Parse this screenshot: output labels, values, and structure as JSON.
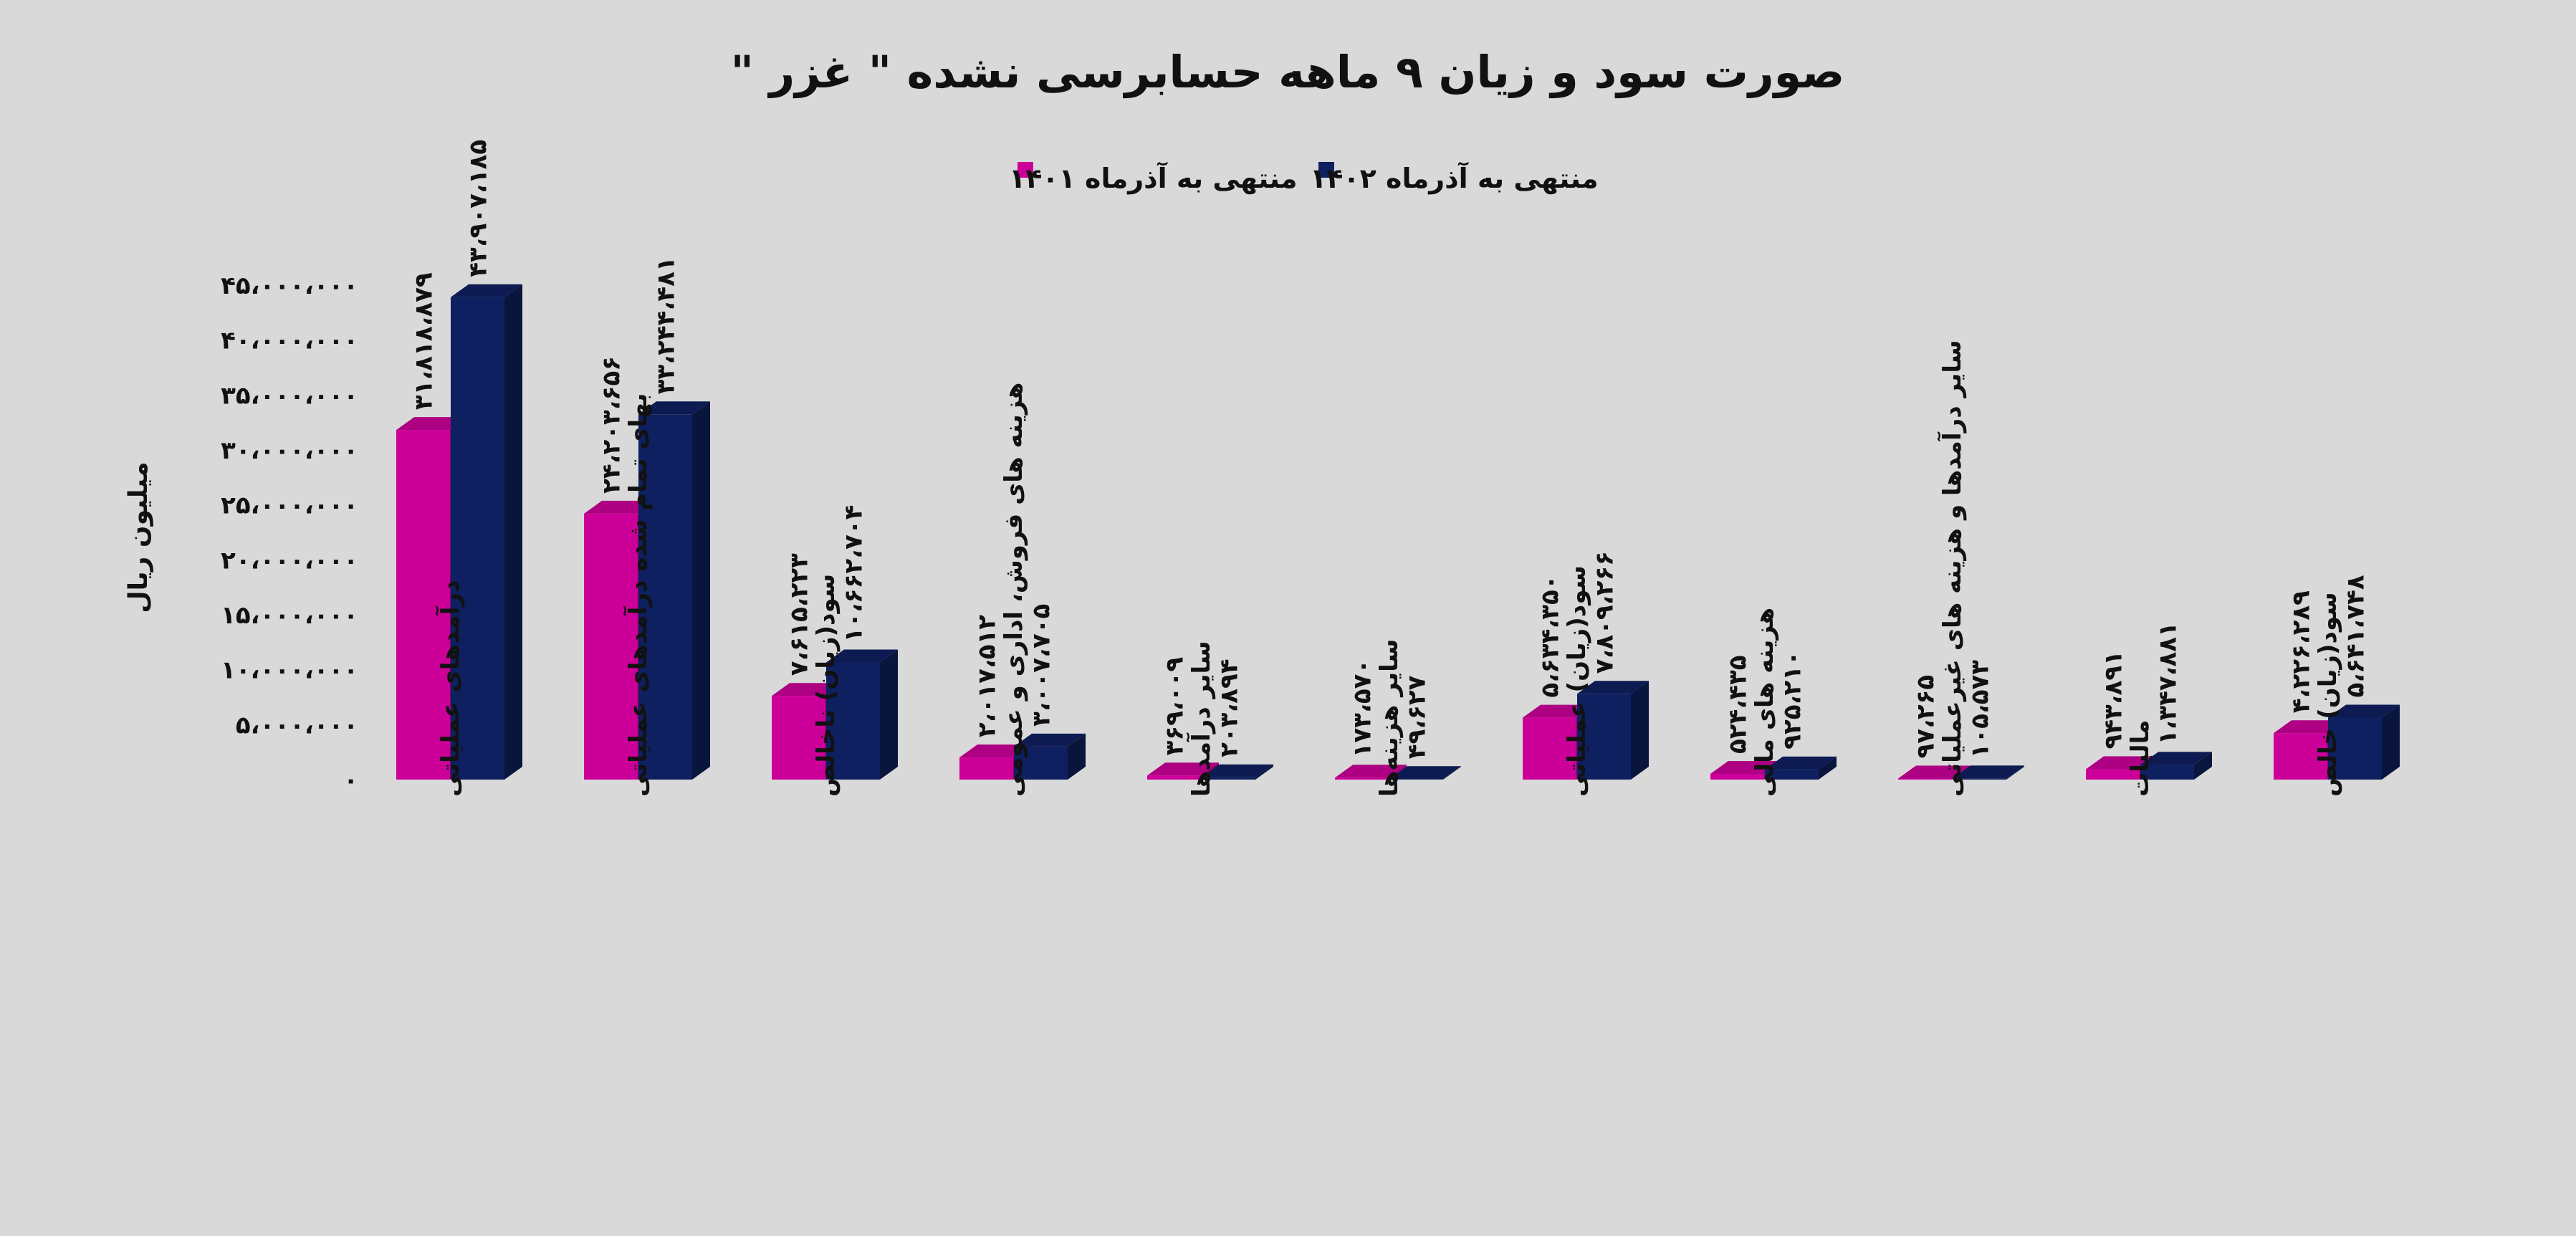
{
  "chart_data": {
    "type": "bar",
    "title": "صورت سود و زیان ۹ ماهه حسابرسی نشده \" غزر \"",
    "ylabel": "میلیون ریال",
    "ylim": [
      0,
      45000000
    ],
    "yticks": [
      0,
      5000000,
      10000000,
      15000000,
      20000000,
      25000000,
      30000000,
      35000000,
      40000000,
      45000000
    ],
    "ytick_labels": [
      "۰",
      "۵،۰۰۰،۰۰۰",
      "۱۰،۰۰۰،۰۰۰",
      "۱۵،۰۰۰،۰۰۰",
      "۲۰،۰۰۰،۰۰۰",
      "۲۵،۰۰۰،۰۰۰",
      "۳۰،۰۰۰،۰۰۰",
      "۳۵،۰۰۰،۰۰۰",
      "۴۰،۰۰۰،۰۰۰",
      "۴۵،۰۰۰،۰۰۰"
    ],
    "legend_position": "top-center",
    "categories": [
      "درآمدهای عملیاتی",
      "بهای تمام شده درآمدهای عملیاتی",
      "سود(زیان) ناخالص",
      "هزینه های فروش، اداری و عمومی",
      "سایر درآمدها",
      "سایر هزینه‌ها",
      "سود(زیان) عملیاتی",
      "هزینه های مالی",
      "سایر درآمدها و هزینه های غیرعملیاتی",
      "مالیات",
      "سود(زیان) خالص"
    ],
    "series": [
      {
        "name": "منتهی به آذرماه ۱۴۰۱",
        "color": "#cc0099",
        "values": [
          31818879,
          24203656,
          7615223,
          2017512,
          369009,
          173570,
          5634350,
          524435,
          97265,
          943891,
          4226289
        ],
        "labels": [
          "۳۱،۸۱۸،۸۷۹",
          "۲۴،۲۰۳،۶۵۶",
          "۷،۶۱۵،۲۲۳",
          "۲،۰۱۷،۵۱۲",
          "۳۶۹،۰۰۹",
          "۱۷۳،۵۷۰",
          "۵،۶۳۴،۳۵۰",
          "۵۲۴،۴۳۵",
          "۹۷،۲۶۵",
          "۹۴۳،۸۹۱",
          "۴،۲۲۶،۲۸۹"
        ]
      },
      {
        "name": "منتهی به آذرماه ۱۴۰۲",
        "color": "#0f2060",
        "values": [
          43907185,
          33244481,
          10662704,
          3007705,
          203894,
          49627,
          7809266,
          925210,
          105573,
          1347881,
          5641748
        ],
        "labels": [
          "۴۳،۹۰۷،۱۸۵",
          "۳۳،۲۴۴،۴۸۱",
          "۱۰،۶۶۲،۷۰۴",
          "۳،۰۰۷،۷۰۵",
          "۲۰۳،۸۹۴",
          "۴۹،۶۲۷",
          "۷،۸۰۹،۲۶۶",
          "۹۲۵،۲۱۰",
          "۱۰۵،۵۷۳",
          "۱،۳۴۷،۸۸۱",
          "۵،۶۴۱،۷۴۸"
        ]
      }
    ]
  }
}
